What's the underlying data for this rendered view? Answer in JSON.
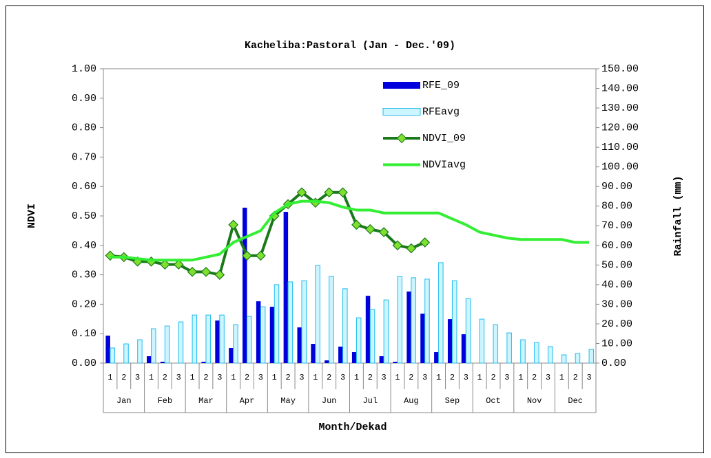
{
  "chart_data": {
    "type": "combo",
    "title": "Kacheliba:Pastoral (Jan - Dec.'09)",
    "x_label": "Month/Dekad",
    "y_label": "NDVI",
    "y2_label": "Rainfall (mm)",
    "categories": [
      "1",
      "2",
      "3",
      "1",
      "2",
      "3",
      "1",
      "2",
      "3",
      "1",
      "2",
      "3",
      "1",
      "2",
      "3",
      "1",
      "2",
      "3",
      "1",
      "2",
      "3",
      "1",
      "2",
      "3",
      "1",
      "2",
      "3",
      "1",
      "2",
      "3",
      "1",
      "2",
      "3",
      "1",
      "2",
      "3"
    ],
    "groups": [
      "Jan",
      "Feb",
      "Mar",
      "Apr",
      "May",
      "Jun",
      "Jul",
      "Aug",
      "Sep",
      "Oct",
      "Nov",
      "Dec"
    ],
    "ylim": [
      0,
      1
    ],
    "yticks": [
      {
        "value": 0,
        "label": "0.00"
      },
      {
        "value": 0.1,
        "label": "0.10"
      },
      {
        "value": 0.2,
        "label": "0.20"
      },
      {
        "value": 0.3,
        "label": "0.30"
      },
      {
        "value": 0.4,
        "label": "0.40"
      },
      {
        "value": 0.5,
        "label": "0.50"
      },
      {
        "value": 0.6,
        "label": "0.60"
      },
      {
        "value": 0.7,
        "label": "0.70"
      },
      {
        "value": 0.8,
        "label": "0.80"
      },
      {
        "value": 0.9,
        "label": "0.90"
      },
      {
        "value": 1,
        "label": "1.00"
      }
    ],
    "y2lim": [
      0,
      150
    ],
    "y2ticks": [
      {
        "value": 0,
        "label": "0.00"
      },
      {
        "value": 10,
        "label": "10.00"
      },
      {
        "value": 20,
        "label": "20.00"
      },
      {
        "value": 30,
        "label": "30.00"
      },
      {
        "value": 40,
        "label": "40.00"
      },
      {
        "value": 50,
        "label": "50.00"
      },
      {
        "value": 60,
        "label": "60.00"
      },
      {
        "value": 70,
        "label": "70.00"
      },
      {
        "value": 80,
        "label": "80.00"
      },
      {
        "value": 90,
        "label": "90.00"
      },
      {
        "value": 100,
        "label": "100.00"
      },
      {
        "value": 110,
        "label": "110.00"
      },
      {
        "value": 120,
        "label": "120.00"
      },
      {
        "value": 130,
        "label": "130.00"
      },
      {
        "value": 140,
        "label": "140.00"
      },
      {
        "value": 150,
        "label": "150.00"
      }
    ],
    "grid": false,
    "series": [
      {
        "name": "RFE_09",
        "type": "bar",
        "axis": "y2",
        "color": "#0000dd",
        "values": [
          14,
          0,
          0,
          3.5,
          0.7,
          0,
          0,
          0.7,
          21.7,
          7.7,
          79.2,
          31.5,
          28.7,
          77.1,
          18.2,
          9.8,
          1.4,
          8.4,
          5.6,
          34.3,
          3.5,
          0.7,
          36.5,
          25.2,
          5.6,
          22.4,
          14.7,
          0,
          0,
          0,
          0,
          0,
          0,
          0,
          0,
          0
        ]
      },
      {
        "name": "RFEavg",
        "type": "bar",
        "axis": "y2",
        "color": "#ccf5ff",
        "values": [
          7.7,
          9.8,
          11.9,
          17.5,
          18.9,
          21,
          24.5,
          24.5,
          24.5,
          19.6,
          23.8,
          28.7,
          40,
          41.4,
          42,
          49.8,
          44.2,
          37.9,
          23.1,
          27.3,
          32.2,
          44.2,
          43.5,
          42.8,
          51.2,
          42,
          32.9,
          22.4,
          19.6,
          15.4,
          11.9,
          10.5,
          8.4,
          4.2,
          4.9,
          7
        ]
      },
      {
        "name": "NDVI_09",
        "type": "line",
        "color": "#1a7a1a",
        "marker_color": "#7fe030",
        "values": [
          0.365,
          0.36,
          0.345,
          0.345,
          0.335,
          0.335,
          0.31,
          0.31,
          0.3,
          0.47,
          0.365,
          0.365,
          0.5,
          0.54,
          0.58,
          0.545,
          0.58,
          0.58,
          0.47,
          0.455,
          0.445,
          0.4,
          0.39,
          0.41,
          null,
          null,
          null,
          null,
          null,
          null,
          null,
          null,
          null,
          null,
          null,
          null
        ]
      },
      {
        "name": "NDVIavg",
        "type": "line",
        "color": "#33ee33",
        "values": [
          0.36,
          0.36,
          0.355,
          0.35,
          0.35,
          0.35,
          0.35,
          0.36,
          0.37,
          0.41,
          0.43,
          0.45,
          0.51,
          0.54,
          0.55,
          0.55,
          0.545,
          0.53,
          0.52,
          0.52,
          0.51,
          0.51,
          0.51,
          0.51,
          0.51,
          0.49,
          0.47,
          0.445,
          0.435,
          0.425,
          0.42,
          0.42,
          0.42,
          0.42,
          0.41,
          0.41
        ]
      }
    ]
  }
}
